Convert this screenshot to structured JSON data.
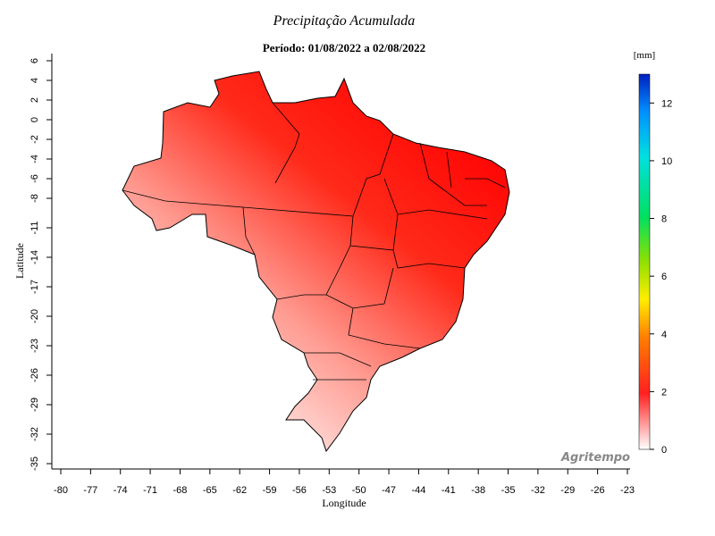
{
  "header": {
    "title": "Precipitação Acumulada",
    "subtitle": "Período: 01/08/2022 a 02/08/2022"
  },
  "map": {
    "x_label": "Longitude",
    "y_label": "Latitude",
    "xlim": [
      -80,
      -23
    ],
    "ylim": [
      -35,
      6
    ],
    "xticks": [
      -80,
      -77,
      -74,
      -71,
      -68,
      -65,
      -62,
      -59,
      -56,
      -53,
      -50,
      -47,
      -44,
      -41,
      -38,
      -35,
      -32,
      -29,
      -26,
      -23
    ],
    "yticks": [
      6,
      4,
      2,
      0,
      -2,
      -4,
      -6,
      -8,
      -11,
      -14,
      -17,
      -20,
      -23,
      -26,
      -29,
      -32,
      -35
    ],
    "watermark": "Agritempo"
  },
  "colorbar": {
    "unit": "[mm]",
    "lim": [
      0,
      13
    ],
    "ticks": [
      0,
      2,
      4,
      6,
      8,
      10,
      12
    ]
  }
}
